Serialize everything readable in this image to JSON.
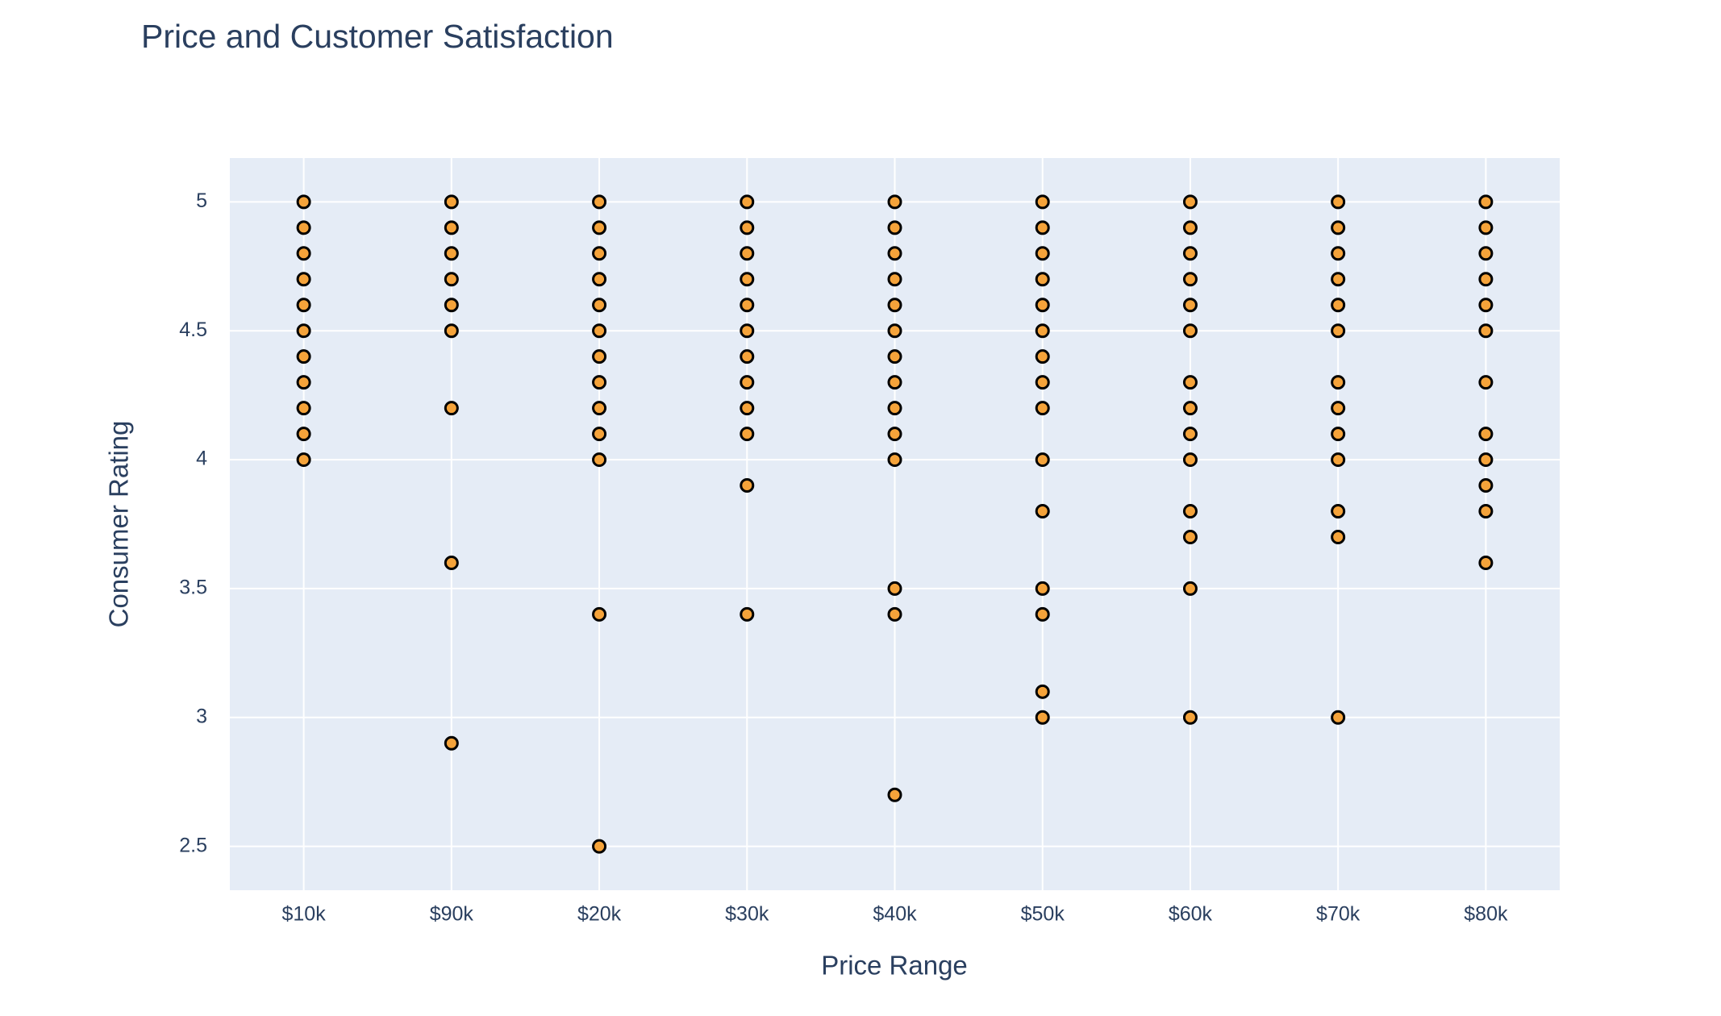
{
  "chart_data": {
    "type": "scatter",
    "title": "Price and Customer Satisfaction",
    "x_label": "Price Range",
    "y_label": "Consumer Rating",
    "categories": [
      "$10k",
      "$90k",
      "$20k",
      "$30k",
      "$40k",
      "$50k",
      "$60k",
      "$70k",
      "$80k"
    ],
    "values": [
      [
        5,
        4.9,
        4.8,
        4.7,
        4.6,
        4.5,
        4.4,
        4.3,
        4.2,
        4.1,
        4.0
      ],
      [
        5,
        4.9,
        4.8,
        4.7,
        4.6,
        4.5,
        4.2,
        3.6,
        2.9
      ],
      [
        5,
        4.9,
        4.8,
        4.7,
        4.6,
        4.5,
        4.4,
        4.3,
        4.2,
        4.1,
        4.0,
        3.4,
        2.5
      ],
      [
        5,
        4.9,
        4.8,
        4.7,
        4.6,
        4.5,
        4.4,
        4.3,
        4.2,
        4.1,
        3.9,
        3.4
      ],
      [
        5,
        4.9,
        4.8,
        4.7,
        4.6,
        4.5,
        4.4,
        4.3,
        4.2,
        4.1,
        4.0,
        3.5,
        3.4,
        2.7
      ],
      [
        5,
        4.9,
        4.8,
        4.7,
        4.6,
        4.5,
        4.4,
        4.3,
        4.2,
        4.0,
        3.8,
        3.5,
        3.4,
        3.1,
        3.0
      ],
      [
        5,
        4.9,
        4.8,
        4.7,
        4.6,
        4.5,
        4.3,
        4.2,
        4.1,
        4.0,
        3.8,
        3.7,
        3.5,
        3.0
      ],
      [
        5,
        4.9,
        4.8,
        4.7,
        4.6,
        4.5,
        4.3,
        4.2,
        4.1,
        4.0,
        3.8,
        3.7,
        3.0
      ],
      [
        5,
        4.9,
        4.8,
        4.7,
        4.6,
        4.5,
        4.3,
        4.1,
        4.0,
        3.9,
        3.8,
        3.6
      ]
    ],
    "color": "#f5a33a",
    "edge_color": "#000000",
    "ylim": [
      2.33,
      5.17
    ],
    "yticks": [
      2.5,
      3,
      3.5,
      4,
      4.5,
      5
    ],
    "grid": true
  }
}
